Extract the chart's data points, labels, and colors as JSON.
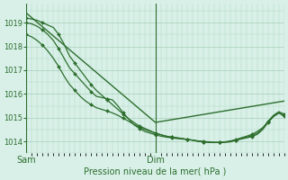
{
  "title": "",
  "xlabel": "Pression niveau de la mer( hPa )",
  "ylabel": "",
  "bg_color": "#d8f0e8",
  "grid_color": "#b0d4c0",
  "line_color": "#2d6e2d",
  "marker_color": "#2d6e2d",
  "yticks": [
    1014,
    1015,
    1016,
    1017,
    1018,
    1019
  ],
  "ylim": [
    1013.5,
    1019.8
  ],
  "xlim": [
    0,
    48
  ],
  "xtick_positions": [
    0,
    24
  ],
  "xtick_labels": [
    "Sam",
    "Dim"
  ],
  "vline_positions": [
    0,
    24
  ],
  "series": [
    {
      "x": [
        0,
        24,
        48
      ],
      "y": [
        1019.4,
        1014.8,
        1015.7
      ],
      "marker": "",
      "markersize": 0,
      "linewidth": 1.0
    },
    {
      "x": [
        0,
        1,
        2,
        3,
        4,
        5,
        6,
        7,
        8,
        9,
        10,
        11,
        12,
        13,
        14,
        15,
        16,
        17,
        18,
        19,
        20,
        21,
        22,
        23,
        24,
        25,
        26,
        27,
        28,
        29,
        30,
        31,
        32,
        33,
        34,
        35,
        36,
        37,
        38,
        39,
        40,
        41,
        42,
        43,
        44,
        45,
        46,
        47,
        48
      ],
      "y": [
        1019.2,
        1019.15,
        1019.1,
        1019.0,
        1018.9,
        1018.8,
        1018.5,
        1018.1,
        1017.6,
        1017.3,
        1017.0,
        1016.7,
        1016.4,
        1016.15,
        1015.95,
        1015.75,
        1015.55,
        1015.35,
        1015.15,
        1014.95,
        1014.8,
        1014.65,
        1014.55,
        1014.45,
        1014.35,
        1014.28,
        1014.22,
        1014.18,
        1014.15,
        1014.12,
        1014.08,
        1014.05,
        1014.0,
        1013.98,
        1013.96,
        1013.95,
        1013.96,
        1013.98,
        1014.0,
        1014.05,
        1014.1,
        1014.15,
        1014.2,
        1014.3,
        1014.5,
        1014.8,
        1015.05,
        1015.2,
        1015.1
      ],
      "marker": "D",
      "markersize": 2.0,
      "linewidth": 0.9
    },
    {
      "x": [
        0,
        1,
        2,
        3,
        4,
        5,
        6,
        7,
        8,
        9,
        10,
        11,
        12,
        13,
        14,
        15,
        16,
        17,
        18,
        19,
        20,
        21,
        22,
        23,
        24,
        25,
        26,
        27,
        28,
        29,
        30,
        31,
        32,
        33,
        34,
        35,
        36,
        37,
        38,
        39,
        40,
        41,
        42,
        43,
        44,
        45,
        46,
        47,
        48
      ],
      "y": [
        1019.0,
        1018.95,
        1018.85,
        1018.7,
        1018.5,
        1018.25,
        1017.9,
        1017.5,
        1017.1,
        1016.85,
        1016.6,
        1016.35,
        1016.1,
        1015.9,
        1015.85,
        1015.8,
        1015.75,
        1015.5,
        1015.2,
        1014.95,
        1014.7,
        1014.55,
        1014.42,
        1014.35,
        1014.28,
        1014.22,
        1014.18,
        1014.15,
        1014.12,
        1014.1,
        1014.08,
        1014.05,
        1014.02,
        1014.0,
        1013.98,
        1013.96,
        1013.95,
        1013.96,
        1013.98,
        1014.05,
        1014.12,
        1014.18,
        1014.25,
        1014.35,
        1014.55,
        1014.85,
        1015.1,
        1015.25,
        1015.15
      ],
      "marker": "D",
      "markersize": 2.0,
      "linewidth": 0.9
    },
    {
      "x": [
        0,
        1,
        2,
        3,
        4,
        5,
        6,
        7,
        8,
        9,
        10,
        11,
        12,
        13,
        14,
        15,
        16,
        17,
        18,
        19,
        20,
        21,
        22,
        23,
        24,
        25,
        26,
        27,
        28,
        29,
        30,
        31,
        32,
        33,
        34,
        35,
        36,
        37,
        38,
        39,
        40,
        41,
        42,
        43,
        44,
        45,
        46,
        47,
        48
      ],
      "y": [
        1018.5,
        1018.4,
        1018.25,
        1018.05,
        1017.8,
        1017.5,
        1017.15,
        1016.75,
        1016.4,
        1016.15,
        1015.9,
        1015.7,
        1015.55,
        1015.42,
        1015.35,
        1015.28,
        1015.2,
        1015.1,
        1014.98,
        1014.85,
        1014.72,
        1014.6,
        1014.5,
        1014.42,
        1014.35,
        1014.28,
        1014.22,
        1014.18,
        1014.15,
        1014.12,
        1014.08,
        1014.05,
        1014.0,
        1013.98,
        1013.96,
        1013.95,
        1013.96,
        1013.98,
        1014.02,
        1014.08,
        1014.15,
        1014.22,
        1014.3,
        1014.42,
        1014.58,
        1014.82,
        1015.05,
        1015.2,
        1015.05
      ],
      "marker": "D",
      "markersize": 2.0,
      "linewidth": 0.9
    }
  ]
}
